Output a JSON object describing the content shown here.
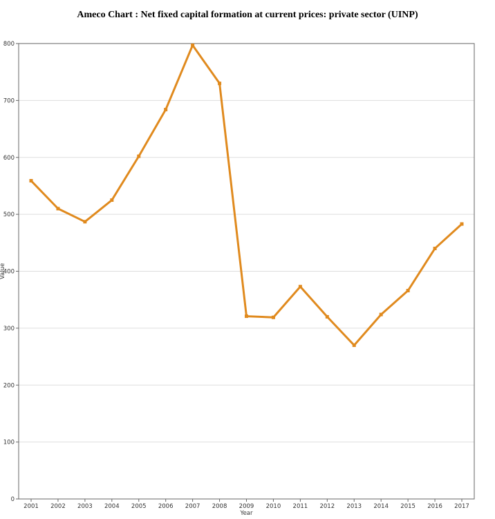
{
  "chart_data": {
    "type": "line",
    "title": "Ameco Chart : Net fixed capital formation at current prices: private sector (UINP)",
    "xlabel": "Year",
    "ylabel": "Value",
    "ylim": [
      0,
      800
    ],
    "yticks": [
      0,
      100,
      200,
      300,
      400,
      500,
      600,
      700,
      800
    ],
    "grid": true,
    "colors": {
      "series": "#e08a1e",
      "grid": "#dddddd",
      "axis": "#666666"
    },
    "categories": [
      "2001",
      "2002",
      "2003",
      "2004",
      "2005",
      "2006",
      "2007",
      "2008",
      "2009",
      "2010",
      "2011",
      "2012",
      "2013",
      "2014",
      "2015",
      "2016",
      "2017"
    ],
    "series": [
      {
        "values": [
          559,
          510,
          487,
          525,
          602,
          684,
          797,
          730,
          321,
          319,
          373,
          320,
          270,
          324,
          366,
          440,
          483
        ]
      }
    ]
  }
}
